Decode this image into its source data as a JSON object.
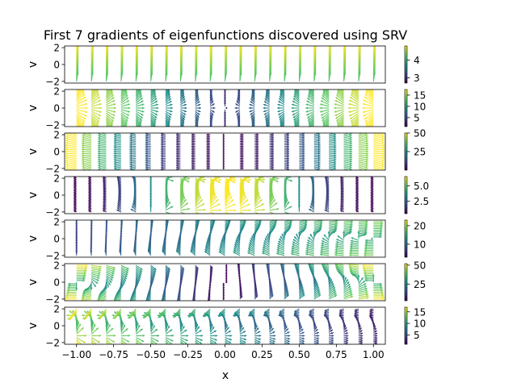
{
  "chart_data": {
    "type": "quiver",
    "title": "First 7 gradients of eigenfunctions discovered using SRV",
    "xlabel": "x",
    "xlim": [
      -1.08,
      1.08
    ],
    "x_ticks": [
      "−1.00",
      "−0.75",
      "−0.50",
      "−0.25",
      "0.00",
      "0.25",
      "0.50",
      "0.75",
      "1.00"
    ],
    "x_tick_values": [
      -1.0,
      -0.75,
      -0.5,
      -0.25,
      0.0,
      0.25,
      0.5,
      0.75,
      1.0
    ],
    "colormap": "viridis",
    "colormap_stops": [
      "#440154",
      "#3b528b",
      "#21918c",
      "#5ec962",
      "#fde725"
    ],
    "grid_x": {
      "start": -1.0,
      "stop": 1.0,
      "count": 21
    },
    "grid_v": {
      "start": -2.0,
      "stop": 2.0,
      "count": 21
    },
    "panels": [
      {
        "ylabel": "v",
        "ylim": [
          -2.2,
          2.2
        ],
        "y_ticks": [
          "2",
          "0",
          "−2"
        ],
        "y_tick_values": [
          2,
          0,
          -2
        ],
        "colorbar": {
          "min": 2.7,
          "max": 4.8,
          "ticks": [
            "4",
            "3"
          ],
          "tick_values": [
            4,
            3
          ]
        },
        "mode": 1
      },
      {
        "ylabel": "v",
        "ylim": [
          -2.2,
          2.2
        ],
        "y_ticks": [
          "2",
          "0",
          "−2"
        ],
        "y_tick_values": [
          2,
          0,
          -2
        ],
        "colorbar": {
          "min": 1,
          "max": 17.5,
          "ticks": [
            "15",
            "10",
            "5"
          ],
          "tick_values": [
            15,
            10,
            5
          ]
        },
        "mode": 2
      },
      {
        "ylabel": "v",
        "ylim": [
          -2.2,
          2.2
        ],
        "y_ticks": [
          "2",
          "0",
          "−2"
        ],
        "y_tick_values": [
          2,
          0,
          -2
        ],
        "colorbar": {
          "min": 0,
          "max": 50,
          "ticks": [
            "50",
            "25"
          ],
          "tick_values": [
            50,
            25
          ]
        },
        "mode": 3
      },
      {
        "ylabel": "v",
        "ylim": [
          -2.2,
          2.2
        ],
        "y_ticks": [
          "2",
          "0",
          "−2"
        ],
        "y_tick_values": [
          2,
          0,
          -2
        ],
        "colorbar": {
          "min": 0.5,
          "max": 6.5,
          "ticks": [
            "5.0",
            "2.5"
          ],
          "tick_values": [
            5.0,
            2.5
          ]
        },
        "mode": 4
      },
      {
        "ylabel": "v",
        "ylim": [
          -2.2,
          2.2
        ],
        "y_ticks": [
          "2",
          "0",
          "−2"
        ],
        "y_tick_values": [
          2,
          0,
          -2
        ],
        "colorbar": {
          "min": 3,
          "max": 23,
          "ticks": [
            "20",
            "10"
          ],
          "tick_values": [
            20,
            10
          ]
        },
        "mode": 5
      },
      {
        "ylabel": "v",
        "ylim": [
          -2.2,
          2.2
        ],
        "y_ticks": [
          "2",
          "0",
          "−2"
        ],
        "y_tick_values": [
          2,
          0,
          -2
        ],
        "colorbar": {
          "min": 3,
          "max": 52,
          "ticks": [
            "50",
            "25"
          ],
          "tick_values": [
            50,
            25
          ]
        },
        "mode": 6
      },
      {
        "ylabel": "v",
        "ylim": [
          -2.2,
          2.2
        ],
        "y_ticks": [
          "2",
          "0",
          "−2"
        ],
        "y_tick_values": [
          2,
          0,
          -2
        ],
        "colorbar": {
          "min": 1,
          "max": 17,
          "ticks": [
            "15",
            "10",
            "5"
          ],
          "tick_values": [
            15,
            10,
            5
          ]
        },
        "mode": 7
      }
    ]
  }
}
